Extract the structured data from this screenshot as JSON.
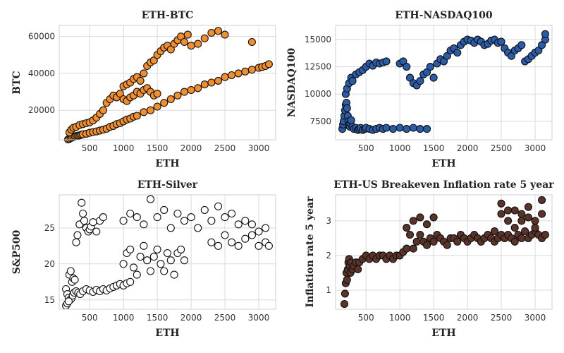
{
  "chart_data": [
    {
      "type": "scatter",
      "title": "ETH-BTC",
      "xlabel": "ETH",
      "ylabel": "BTC",
      "xlim": [
        50,
        3250
      ],
      "ylim": [
        4000,
        66000
      ],
      "xticks": [
        500,
        1000,
        1500,
        2000,
        2500,
        3000
      ],
      "yticks": [
        20000,
        40000,
        60000
      ],
      "grid": true,
      "color": "#f28e2b",
      "series": [
        {
          "x": [
            180,
            200,
            220,
            240,
            260,
            280,
            300,
            320,
            340,
            360,
            380,
            400,
            450,
            500,
            550,
            600,
            650,
            700,
            750,
            800,
            850,
            900,
            950,
            1000,
            1050,
            1100,
            1150,
            1200,
            1300,
            1400,
            1500,
            1600,
            1700,
            1800,
            1900,
            2000,
            2100,
            2200,
            2300,
            2400,
            2500,
            2600,
            2700,
            2800,
            2900,
            3000,
            3050,
            3100,
            3150,
            200,
            230,
            260,
            300,
            350,
            400,
            450,
            500,
            550,
            600,
            650,
            700,
            750,
            800,
            850,
            900,
            950,
            1000,
            1050,
            1100,
            1150,
            1200,
            1250,
            1300,
            1350,
            1400,
            1450,
            1500,
            1000,
            1050,
            1100,
            1150,
            1200,
            1250,
            1300,
            1350,
            1400,
            1450,
            1500,
            1550,
            1600,
            1650,
            1700,
            1750,
            1800,
            1850,
            1900,
            1950,
            2000,
            2100,
            2200,
            2300,
            2400,
            2500,
            2900
          ],
          "y": [
            4200,
            4500,
            5000,
            5200,
            5500,
            5800,
            6000,
            6200,
            6300,
            6500,
            6800,
            7000,
            7300,
            7800,
            8200,
            8500,
            9000,
            9500,
            10000,
            11000,
            11500,
            12500,
            13000,
            14000,
            15000,
            15500,
            16500,
            17000,
            19000,
            20000,
            22000,
            24000,
            26000,
            28000,
            30000,
            31000,
            32000,
            34000,
            35000,
            36000,
            38000,
            39000,
            40000,
            41000,
            42000,
            43000,
            43500,
            44000,
            45000,
            8000,
            9500,
            10500,
            11000,
            12000,
            12500,
            13000,
            13500,
            14500,
            16000,
            18000,
            20000,
            24000,
            26000,
            28000,
            27000,
            29000,
            26000,
            25000,
            27000,
            28000,
            30000,
            29000,
            31000,
            32000,
            30000,
            28000,
            29000,
            33000,
            34000,
            35000,
            37000,
            38000,
            36000,
            40000,
            44000,
            46000,
            47000,
            50000,
            52000,
            54000,
            55000,
            53000,
            56000,
            58000,
            60000,
            57000,
            61000,
            55000,
            56000,
            59000,
            62000,
            63000,
            61000,
            57000
          ]
        }
      ]
    },
    {
      "type": "scatter",
      "title": "ETH-NASDAQ100",
      "xlabel": "ETH",
      "ylabel": "NASDAQ100",
      "xlim": [
        50,
        3250
      ],
      "ylim": [
        5800,
        16300
      ],
      "xticks": [
        500,
        1000,
        1500,
        2000,
        2500,
        3000
      ],
      "yticks": [
        7500,
        10000,
        12500,
        15000
      ],
      "grid": true,
      "color": "#2a5caa",
      "series": [
        {
          "x": [
            150,
            160,
            170,
            180,
            190,
            200,
            210,
            220,
            230,
            240,
            250,
            260,
            270,
            280,
            300,
            320,
            350,
            380,
            400,
            420,
            450,
            480,
            500,
            550,
            600,
            650,
            700,
            750,
            800,
            900,
            1000,
            1100,
            1200,
            1300,
            1400,
            200,
            220,
            250,
            280,
            300,
            350,
            400,
            450,
            500,
            550,
            600,
            650,
            700,
            750,
            800,
            1000,
            1050,
            1100,
            1150,
            1200,
            1250,
            1300,
            1350,
            1400,
            1450,
            1500,
            1550,
            1600,
            1650,
            1700,
            1750,
            1800,
            1850,
            1900,
            1950,
            2000,
            2050,
            2100,
            2150,
            2200,
            2250,
            2300,
            2350,
            2400,
            2450,
            2500,
            2550,
            2600,
            2650,
            2700,
            2750,
            2800,
            2850,
            2900,
            2950,
            3000,
            3050,
            3100,
            3150,
            3150
          ],
          "y": [
            6800,
            7200,
            7500,
            8000,
            8500,
            9000,
            9200,
            8700,
            8000,
            7500,
            7200,
            7000,
            7300,
            7600,
            7000,
            6800,
            6900,
            6700,
            6800,
            6900,
            6700,
            6800,
            6900,
            6800,
            6700,
            6800,
            6900,
            6800,
            6900,
            6800,
            6900,
            6800,
            6900,
            6800,
            6800,
            10000,
            10500,
            11000,
            11500,
            11200,
            11800,
            12000,
            12200,
            12500,
            12800,
            12600,
            12900,
            12800,
            12900,
            13000,
            12800,
            13000,
            12500,
            11500,
            11000,
            10800,
            11200,
            11800,
            12000,
            12500,
            11500,
            12800,
            13200,
            13000,
            13500,
            14000,
            14200,
            13800,
            14500,
            14800,
            15000,
            14900,
            14700,
            15000,
            14800,
            14500,
            14600,
            14900,
            15000,
            14700,
            14800,
            14200,
            13800,
            13500,
            14000,
            14200,
            14500,
            13000,
            13200,
            13500,
            13800,
            14000,
            14500,
            15000,
            15500
          ]
        }
      ]
    },
    {
      "type": "scatter",
      "title": "ETH-Silver",
      "xlabel": "ETH",
      "ylabel": "S&P500",
      "xlim": [
        50,
        3250
      ],
      "ylim": [
        13.7,
        29.6
      ],
      "xticks": [
        500,
        1000,
        1500,
        2000,
        2500,
        3000
      ],
      "yticks": [
        15,
        20,
        25
      ],
      "grid": true,
      "color": "#ffffff",
      "series": [
        {
          "x": [
            150,
            170,
            190,
            210,
            230,
            250,
            270,
            300,
            330,
            360,
            400,
            450,
            500,
            550,
            600,
            650,
            700,
            750,
            800,
            850,
            900,
            950,
            1000,
            1050,
            1100,
            150,
            170,
            190,
            200,
            220,
            240,
            260,
            280,
            300,
            320,
            350,
            380,
            400,
            420,
            450,
            480,
            500,
            520,
            550,
            600,
            650,
            700,
            1000,
            1050,
            1100,
            1150,
            1200,
            1250,
            1300,
            1350,
            1400,
            1450,
            1500,
            1550,
            1600,
            1650,
            1700,
            1750,
            1800,
            1850,
            1900,
            1000,
            1100,
            1200,
            1300,
            1400,
            1500,
            1600,
            1700,
            1800,
            1900,
            2000,
            2100,
            2200,
            2300,
            2400,
            2500,
            2600,
            2700,
            2800,
            2900,
            3000,
            3100,
            2300,
            2400,
            2500,
            2600,
            2700,
            2800,
            2900,
            3000,
            3100,
            3150
          ],
          "y": [
            16.5,
            15.8,
            15.3,
            15.0,
            15.2,
            15.6,
            16.0,
            16.2,
            16.0,
            15.8,
            16.2,
            16.5,
            16.3,
            16.1,
            16.4,
            16.2,
            16.5,
            16.3,
            16.6,
            16.8,
            17.0,
            17.2,
            17.0,
            17.3,
            17.5,
            14.2,
            14.5,
            14.8,
            18.5,
            19.0,
            17.5,
            18.0,
            17.8,
            23.0,
            24.0,
            25.5,
            28.5,
            27.0,
            26.0,
            25.0,
            24.5,
            24.8,
            25.2,
            25.8,
            24.5,
            26.0,
            26.5,
            20.0,
            21.5,
            22.0,
            19.5,
            18.5,
            21.0,
            22.5,
            20.5,
            19.0,
            21.0,
            22.0,
            20.0,
            19.0,
            21.5,
            20.5,
            18.5,
            21.5,
            22.0,
            20.5,
            26.0,
            27.0,
            26.5,
            25.5,
            29.0,
            26.5,
            27.5,
            25.0,
            27.0,
            26.0,
            26.5,
            25.0,
            27.5,
            26.0,
            28.0,
            26.5,
            27.0,
            25.5,
            26.0,
            25.5,
            24.5,
            25.0,
            23.0,
            22.5,
            24.0,
            23.0,
            22.5,
            23.5,
            24.0,
            22.5,
            23.0,
            22.5
          ]
        }
      ]
    },
    {
      "type": "scatter",
      "title": "ETH-US Breakeven Inflation rate 5 year",
      "xlabel": "ETH",
      "ylabel": "Inflation rate 5 year",
      "xlim": [
        50,
        3250
      ],
      "ylim": [
        0.45,
        3.75
      ],
      "xticks": [
        500,
        1000,
        1500,
        2000,
        2500,
        3000
      ],
      "yticks": [
        1,
        2,
        3
      ],
      "grid": true,
      "color": "#5c3328",
      "series": [
        {
          "x": [
            180,
            190,
            200,
            210,
            220,
            230,
            240,
            250,
            260,
            270,
            280,
            300,
            320,
            350,
            380,
            400,
            450,
            500,
            550,
            600,
            650,
            700,
            750,
            800,
            850,
            900,
            950,
            1000,
            1050,
            1100,
            1100,
            1150,
            1200,
            1250,
            1300,
            1350,
            1400,
            1450,
            1500,
            1550,
            1600,
            1650,
            1700,
            1750,
            1800,
            1850,
            1900,
            1950,
            2000,
            2050,
            2100,
            2150,
            2200,
            2250,
            2300,
            2350,
            2400,
            2450,
            2500,
            2550,
            2600,
            2650,
            2700,
            2750,
            2800,
            2850,
            2900,
            2950,
            3000,
            3050,
            3100,
            3150,
            1200,
            1300,
            1400,
            1500,
            2500,
            2600,
            2700,
            2800,
            2900,
            3000,
            3100,
            2400,
            2500,
            2600,
            2700,
            2800,
            2900,
            3000,
            3100
          ],
          "y": [
            0.6,
            0.9,
            1.2,
            1.5,
            1.3,
            1.6,
            1.8,
            1.9,
            1.7,
            1.5,
            1.8,
            1.6,
            1.7,
            1.8,
            1.6,
            1.8,
            1.9,
            2.0,
            1.9,
            2.0,
            1.9,
            2.0,
            2.0,
            1.9,
            2.0,
            1.9,
            2.0,
            2.0,
            2.1,
            2.2,
            2.8,
            2.6,
            2.2,
            2.4,
            2.6,
            2.4,
            2.3,
            2.5,
            2.4,
            2.6,
            2.5,
            2.4,
            2.3,
            2.5,
            2.5,
            2.4,
            2.6,
            2.5,
            2.4,
            2.5,
            2.6,
            2.5,
            2.4,
            2.5,
            2.6,
            2.5,
            2.4,
            2.5,
            2.6,
            2.5,
            2.6,
            2.5,
            2.4,
            2.6,
            2.5,
            2.7,
            2.5,
            2.6,
            2.7,
            2.6,
            2.5,
            2.6,
            3.0,
            3.1,
            2.9,
            3.1,
            3.2,
            3.0,
            3.3,
            3.0,
            3.4,
            3.0,
            3.6,
            2.7,
            3.5,
            3.3,
            2.8,
            3.2,
            3.1,
            2.8,
            3.2
          ]
        }
      ]
    }
  ]
}
